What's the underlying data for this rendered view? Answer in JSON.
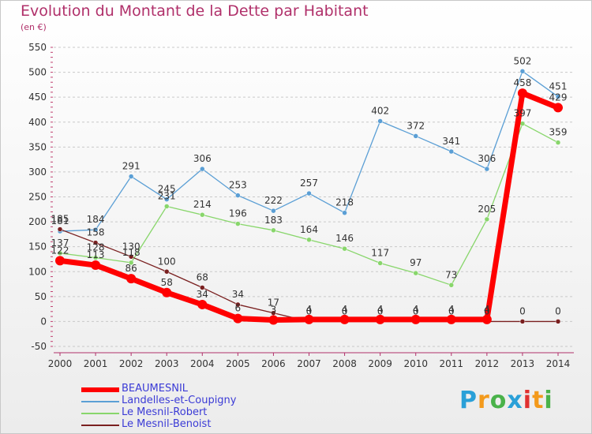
{
  "header": {
    "title": "Evolution du Montant de la Dette par Habitant",
    "subtitle": "(en €)"
  },
  "brand": {
    "label": "Proxiti",
    "colors": [
      "#2aa0d8",
      "#f39a1c",
      "#4ab24a",
      "#2aa0d8",
      "#e03030",
      "#f39a1c",
      "#4ab24a"
    ]
  },
  "chart_data": {
    "type": "line",
    "title": "Evolution du Montant de la Dette par Habitant",
    "subtitle": "(en €)",
    "xlabel": "",
    "ylabel": "",
    "x": [
      "2000",
      "2001",
      "2002",
      "2003",
      "2004",
      "2005",
      "2006",
      "2007",
      "2008",
      "2009",
      "2010",
      "2011",
      "2012",
      "2013",
      "2014"
    ],
    "ylim": [
      -50,
      550
    ],
    "yticks": [
      -50,
      0,
      50,
      100,
      150,
      200,
      250,
      300,
      350,
      400,
      450,
      500,
      550
    ],
    "grid": "horizontal-dashed",
    "legend": "bottom-left",
    "series": [
      {
        "name": "BEAUMESNIL",
        "color": "#ff0000",
        "values": [
          122,
          113,
          86,
          58,
          34,
          6,
          3,
          4,
          4,
          4,
          4,
          4,
          4,
          458,
          429
        ]
      },
      {
        "name": "Landelles-et-Coupigny",
        "color": "#5b9fd5",
        "values": [
          181,
          184,
          291,
          245,
          306,
          253,
          222,
          257,
          218,
          402,
          372,
          341,
          306,
          502,
          451
        ]
      },
      {
        "name": "Le Mesnil-Robert",
        "color": "#88d66b",
        "values": [
          137,
          128,
          118,
          231,
          214,
          196,
          183,
          164,
          146,
          117,
          97,
          73,
          205,
          397,
          359
        ]
      },
      {
        "name": "Le Mesnil-Benoist",
        "color": "#7a2020",
        "values": [
          185,
          158,
          130,
          100,
          68,
          34,
          17,
          0,
          0,
          0,
          0,
          0,
          0,
          0,
          0
        ]
      }
    ],
    "labels": [
      [
        "122",
        "113",
        "86",
        "58",
        "34",
        "6",
        "3",
        "4",
        "4",
        "4",
        "4",
        "4",
        "4",
        "458",
        "429"
      ],
      [
        "181",
        "184",
        "291",
        "245",
        "306",
        "253",
        "222",
        "257",
        "218",
        "402",
        "372",
        "341",
        "306",
        "502",
        "451"
      ],
      [
        "137",
        "128",
        "118",
        "231",
        "214",
        "196",
        "183",
        "164",
        "146",
        "117",
        "97",
        "73",
        "205",
        "397",
        "359"
      ],
      [
        "185",
        "158",
        "130",
        "100",
        "68",
        "34",
        "17",
        "0",
        "0",
        "0",
        "0",
        "0",
        "0",
        "0",
        "0"
      ]
    ]
  }
}
